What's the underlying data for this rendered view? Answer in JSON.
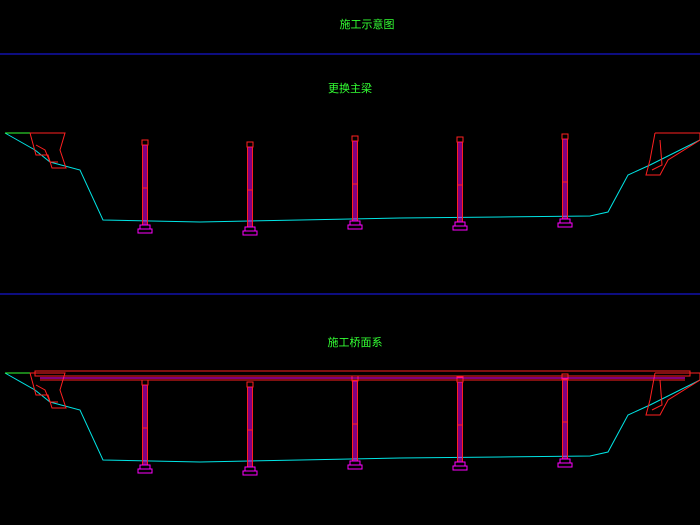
{
  "title": "施工示意图",
  "sections": [
    {
      "label": "更换主梁"
    },
    {
      "label": "施工桥面系"
    }
  ]
}
